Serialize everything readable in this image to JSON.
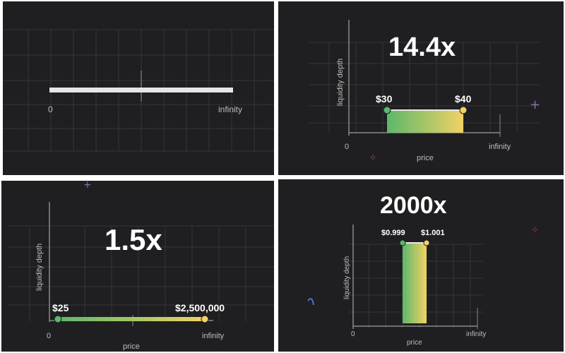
{
  "panels": [
    {
      "zero": "0",
      "infinity": "infinity"
    },
    {
      "multiplier": "14.4x",
      "y_label": "liquidity depth",
      "x_label": "price",
      "zero": "0",
      "infinity": "infinity",
      "low": "$30",
      "high": "$40"
    },
    {
      "multiplier": "1.5x",
      "y_label": "liquidity depth",
      "x_label": "price",
      "zero": "0",
      "infinity": "infinity",
      "low": "$25",
      "high": "$2,500,000"
    },
    {
      "multiplier": "2000x",
      "y_label": "liquidity depth",
      "x_label": "price",
      "zero": "0",
      "infinity": "infinity",
      "low": "$0.999",
      "high": "$1.001"
    }
  ],
  "colors": {
    "background": "#1f1f22",
    "grid": "#3a3a3e",
    "gradient_start": "#5cb86a",
    "gradient_end": "#f2d266"
  }
}
